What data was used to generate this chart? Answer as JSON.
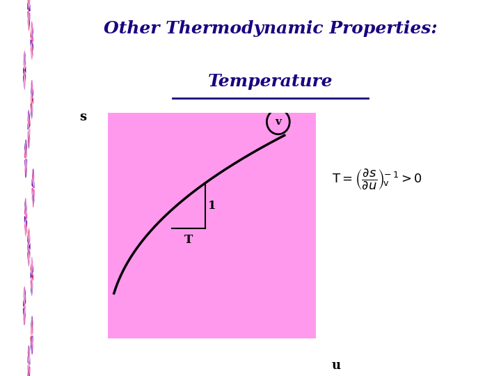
{
  "title_line1": "Other Thermodynamic Properties:",
  "title_line2": "Temperature",
  "title_color": "#1a0080",
  "bg_color": "#FFFFFF",
  "plot_bg_color": "#FF99EE",
  "curve_color": "#000000",
  "axis_color": "#000000",
  "label_s": "s",
  "label_u": "u",
  "label_v": "v",
  "label_1": "1",
  "label_T": "T",
  "formula_color": "#000000",
  "spiral_purple_dark": "#5500AA",
  "spiral_purple_light": "#9966CC",
  "spiral_pink": "#FF44AA",
  "spiral_pink_light": "#FF99CC",
  "spiral_red": "#CC1155",
  "title_fontsize": 18,
  "spiral_n": 13,
  "spiral_wedges": 12
}
